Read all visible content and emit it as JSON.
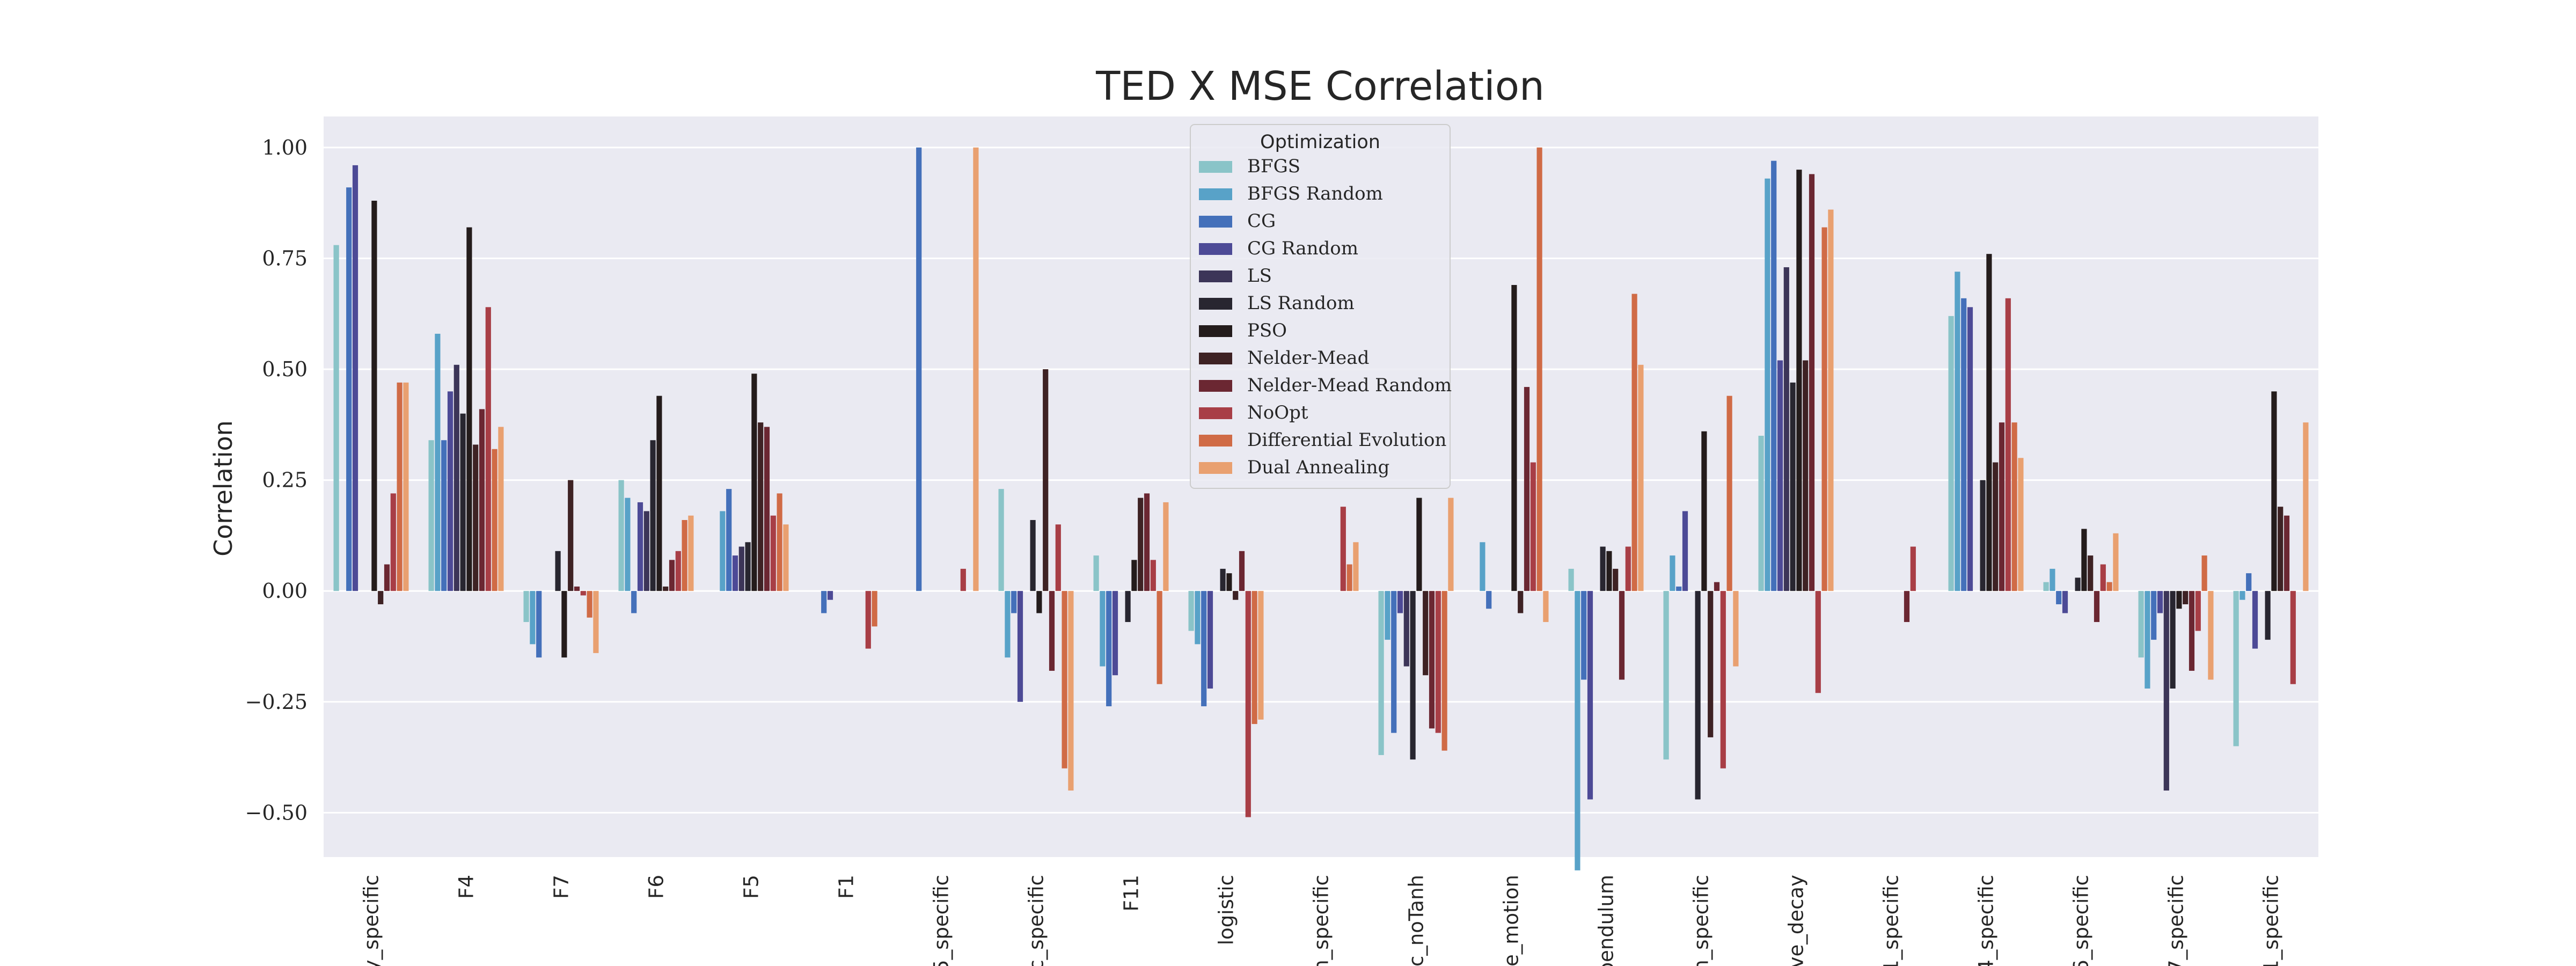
{
  "chart_data": {
    "type": "bar",
    "title": "TED X MSE Correlation",
    "xlabel": "",
    "ylabel": "Correlation",
    "ylim": [
      -0.6,
      1.07
    ],
    "yticks": [
      -0.5,
      -0.25,
      0.0,
      0.25,
      0.5,
      0.75,
      1.0
    ],
    "ytick_labels": [
      "−0.50",
      "−0.25",
      "0.00",
      "0.25",
      "0.50",
      "0.75",
      "1.00"
    ],
    "grid": "y",
    "legend": {
      "title": "Optimization",
      "placement": "upper-center"
    },
    "categories": [
      "y_specific",
      "F4",
      "F7",
      "F6",
      "F5",
      "F1",
      "5_specific",
      "c_specific",
      "F11",
      "logistic",
      "n_specific",
      "c_noTanh",
      "le_motion",
      "pendulum",
      "n_specific",
      "ive_decay",
      "1_specific",
      "4_specific",
      "6_specific",
      "7_specific",
      "1_specific"
    ],
    "series": [
      {
        "name": "BFGS",
        "color": "#8ac4c8",
        "values": [
          0.78,
          0.34,
          -0.07,
          0.25,
          0.0,
          0.0,
          0.0,
          0.23,
          0.08,
          -0.09,
          0.0,
          -0.37,
          0.0,
          0.05,
          -0.38,
          0.35,
          0.0,
          0.62,
          0.02,
          -0.15,
          -0.35
        ]
      },
      {
        "name": "BFGS Random",
        "color": "#58a2c8",
        "values": [
          0.0,
          0.58,
          -0.12,
          0.21,
          0.18,
          0.0,
          0.0,
          -0.15,
          -0.17,
          -0.12,
          0.0,
          -0.11,
          0.11,
          -0.63,
          0.08,
          0.93,
          0.0,
          0.72,
          0.05,
          -0.22,
          -0.02
        ]
      },
      {
        "name": "CG",
        "color": "#4470ba",
        "values": [
          0.91,
          0.34,
          -0.15,
          -0.05,
          0.23,
          -0.05,
          1.0,
          -0.05,
          -0.26,
          -0.26,
          0.0,
          -0.32,
          -0.04,
          -0.2,
          0.01,
          0.97,
          0.0,
          0.66,
          -0.03,
          -0.11,
          0.04
        ]
      },
      {
        "name": "CG Random",
        "color": "#4d4a96",
        "values": [
          0.96,
          0.45,
          0.0,
          0.2,
          0.08,
          -0.02,
          0.0,
          -0.25,
          -0.19,
          -0.22,
          0.0,
          -0.05,
          0.0,
          -0.47,
          0.18,
          0.52,
          0.0,
          0.64,
          -0.05,
          -0.05,
          -0.13
        ]
      },
      {
        "name": "LS",
        "color": "#3c3558",
        "values": [
          0.0,
          0.51,
          0.0,
          0.18,
          0.1,
          0.0,
          0.0,
          0.0,
          0.0,
          0.0,
          0.0,
          -0.17,
          0.0,
          0.0,
          0.0,
          0.73,
          0.0,
          0.0,
          0.0,
          -0.45,
          0.0
        ]
      },
      {
        "name": "LS Random",
        "color": "#282630",
        "values": [
          0.0,
          0.4,
          0.09,
          0.34,
          0.11,
          0.0,
          0.0,
          0.16,
          -0.07,
          0.05,
          0.0,
          -0.38,
          0.0,
          0.1,
          -0.47,
          0.47,
          0.0,
          0.25,
          0.03,
          -0.22,
          -0.11
        ]
      },
      {
        "name": "PSO",
        "color": "#241c1c",
        "values": [
          0.88,
          0.82,
          -0.15,
          0.44,
          0.49,
          0.0,
          0.0,
          -0.05,
          0.07,
          0.04,
          0.0,
          0.21,
          0.69,
          0.09,
          0.36,
          0.95,
          0.0,
          0.76,
          0.14,
          -0.04,
          0.45
        ]
      },
      {
        "name": "Nelder-Mead",
        "color": "#3e2224",
        "values": [
          -0.03,
          0.33,
          0.25,
          0.01,
          0.38,
          0.0,
          0.0,
          0.5,
          0.21,
          -0.02,
          0.0,
          -0.19,
          -0.05,
          0.05,
          -0.33,
          0.52,
          0.0,
          0.29,
          0.08,
          -0.03,
          0.19
        ]
      },
      {
        "name": "Nelder-Mead Random",
        "color": "#6b2732",
        "values": [
          0.06,
          0.41,
          0.01,
          0.07,
          0.37,
          0.0,
          0.0,
          -0.18,
          0.22,
          0.09,
          0.0,
          -0.31,
          0.46,
          -0.2,
          0.02,
          0.94,
          -0.07,
          0.38,
          -0.07,
          -0.18,
          0.17
        ]
      },
      {
        "name": "NoOpt",
        "color": "#a83e46",
        "values": [
          0.22,
          0.64,
          -0.01,
          0.09,
          0.17,
          -0.13,
          0.05,
          0.15,
          0.07,
          -0.51,
          0.19,
          -0.32,
          0.29,
          0.1,
          -0.4,
          -0.23,
          0.1,
          0.66,
          0.06,
          -0.09,
          -0.21
        ]
      },
      {
        "name": "Differential Evolution",
        "color": "#d06b46",
        "values": [
          0.47,
          0.32,
          -0.06,
          0.16,
          0.22,
          -0.08,
          0.0,
          -0.4,
          -0.21,
          -0.3,
          0.06,
          -0.36,
          1.0,
          0.67,
          0.44,
          0.82,
          0.0,
          0.38,
          0.02,
          0.08,
          0.0
        ]
      },
      {
        "name": "Dual Annealing",
        "color": "#e9a070",
        "values": [
          0.47,
          0.37,
          -0.14,
          0.17,
          0.15,
          0.0,
          1.0,
          -0.45,
          0.2,
          -0.29,
          0.11,
          0.21,
          -0.07,
          0.51,
          -0.17,
          0.86,
          0.0,
          0.3,
          0.13,
          -0.2,
          0.38
        ]
      }
    ]
  }
}
